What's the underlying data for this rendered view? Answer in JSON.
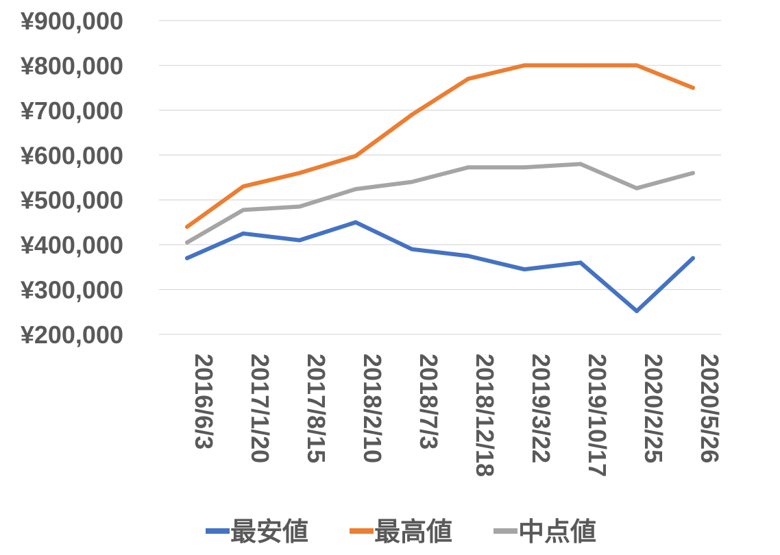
{
  "chart_data": {
    "type": "line",
    "categories": [
      "2016/6/3",
      "2017/1/20",
      "2017/8/15",
      "2018/2/10",
      "2018/7/3",
      "2018/12/18",
      "2019/3/22",
      "2019/10/17",
      "2020/2/25",
      "2020/5/26"
    ],
    "series": [
      {
        "name": "最安値",
        "color": "#4472C4",
        "values": [
          370000,
          425000,
          410000,
          450000,
          390000,
          375000,
          345000,
          360000,
          252000,
          370000
        ]
      },
      {
        "name": "最高値",
        "color": "#ED7D31",
        "values": [
          440000,
          530000,
          560000,
          598000,
          690000,
          770000,
          800000,
          800000,
          800000,
          750000
        ]
      },
      {
        "name": "中点値",
        "color": "#A5A5A5",
        "values": [
          405000,
          477500,
          485000,
          524000,
          540000,
          572500,
          572500,
          580000,
          526000,
          560000
        ]
      }
    ],
    "yticks": [
      "¥200,000",
      "¥300,000",
      "¥400,000",
      "¥500,000",
      "¥600,000",
      "¥700,000",
      "¥800,000",
      "¥900,000"
    ],
    "ytick_values": [
      200000,
      300000,
      400000,
      500000,
      600000,
      700000,
      800000,
      900000
    ],
    "ylim": [
      200000,
      900000
    ],
    "grid": true,
    "legend_position": "bottom"
  }
}
